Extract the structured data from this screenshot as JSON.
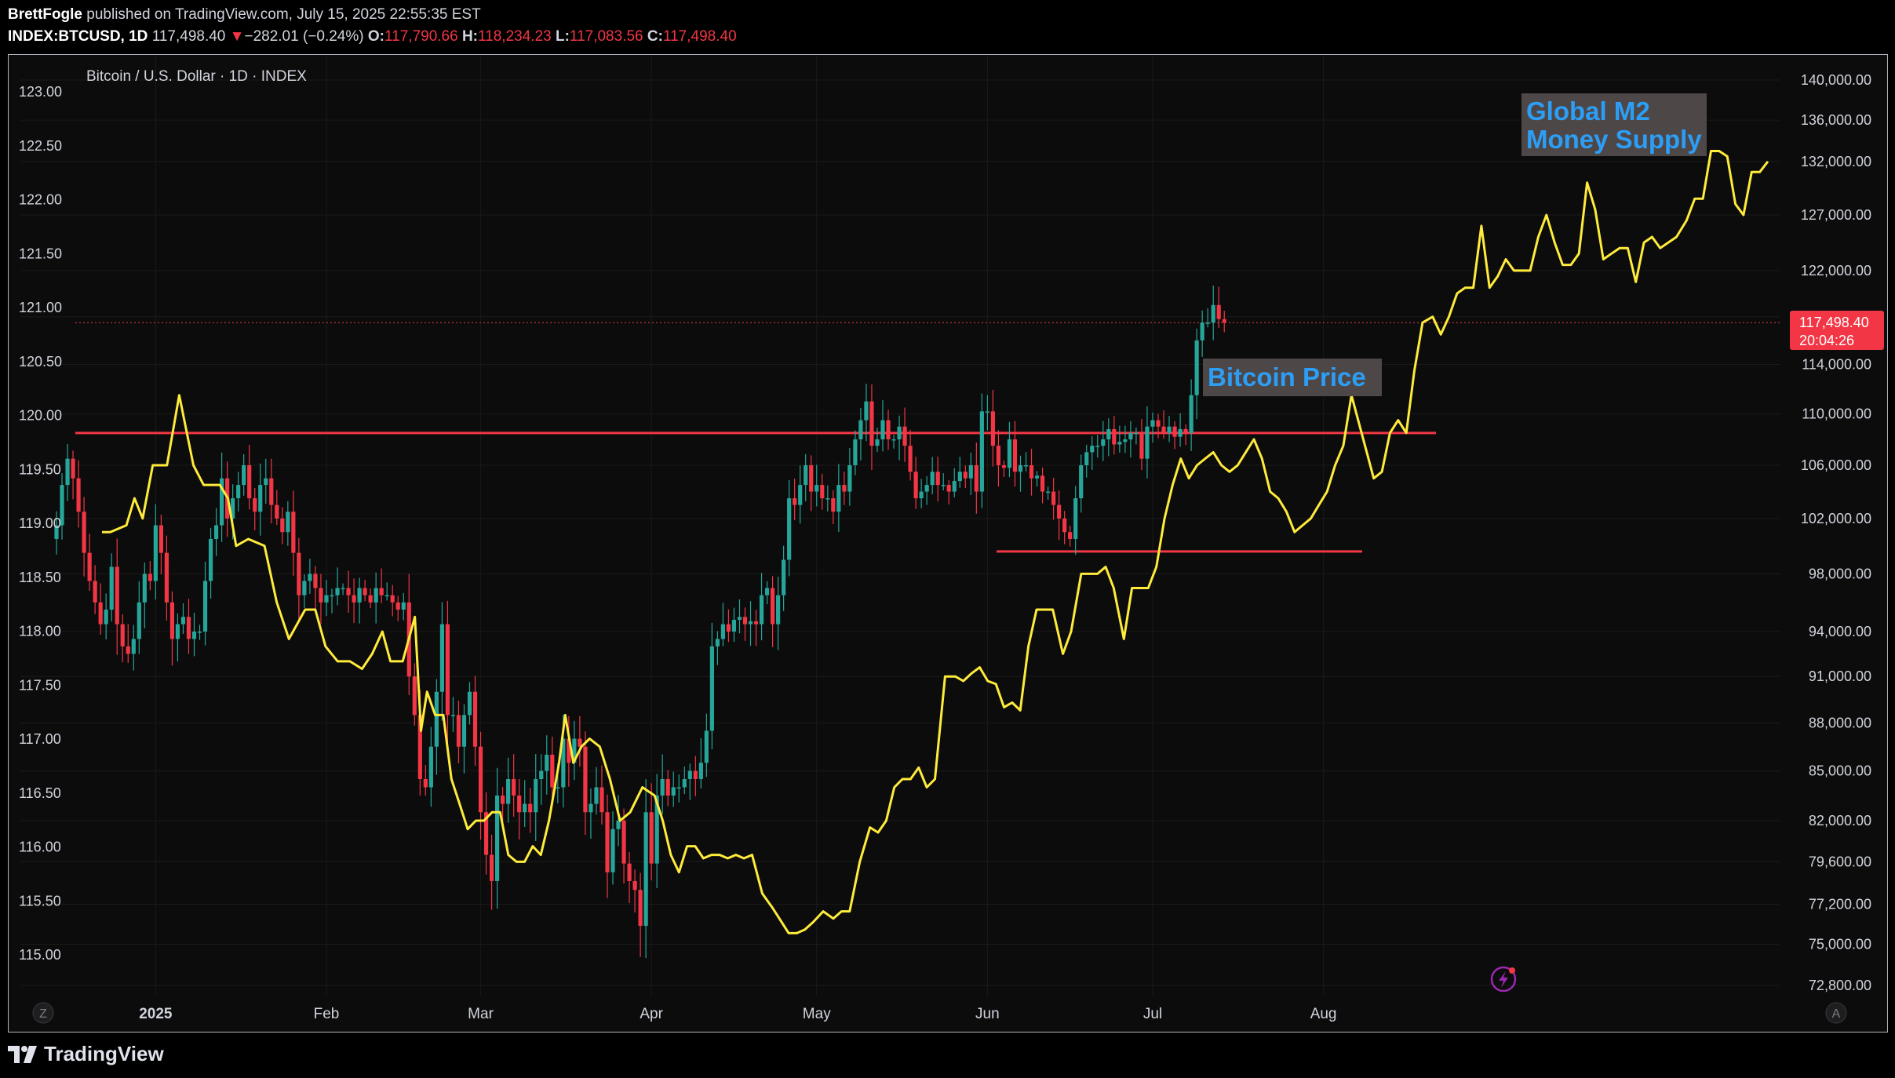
{
  "header": {
    "author": "BrettFogle",
    "published_text": "published on TradingView.com, July 15, 2025 22:55:35 EST",
    "symbol": "INDEX:BTCUSD, 1D",
    "last": "117,498.40",
    "arrow": "▼",
    "change": "−282.01 (−0.24%)",
    "o_label": "O:",
    "o": "117,790.66",
    "h_label": "H:",
    "h": "118,234.23",
    "l_label": "L:",
    "l": "117,083.56",
    "c_label": "C:",
    "c": "117,498.40"
  },
  "chart_title": "Bitcoin / U.S. Dollar · 1D · INDEX",
  "annotations": {
    "m2_line1": "Global M2",
    "m2_line2": "Money Supply",
    "btc": "Bitcoin Price"
  },
  "price_badge": {
    "price": "117,498.40",
    "countdown": "20:04:26"
  },
  "scale_buttons": {
    "left": "Z",
    "right": "A"
  },
  "footer": {
    "brand": "TradingView"
  },
  "colors": {
    "up": "#26a69a",
    "down": "#f23645",
    "m2": "#ffeb3b",
    "label_text": "#2c9ef6",
    "label_bg": "#4d4747",
    "background": "#0c0c0c"
  },
  "chart_data": {
    "type": "candlestick",
    "title": "Bitcoin / U.S. Dollar · 1D · INDEX",
    "x_ticks": [
      "2025",
      "Feb",
      "Mar",
      "Apr",
      "May",
      "Jun",
      "Jul",
      "Aug"
    ],
    "left_axis": {
      "ticks": [
        "123.00",
        "122.50",
        "122.00",
        "121.50",
        "121.00",
        "120.50",
        "120.00",
        "119.50",
        "119.00",
        "118.50",
        "118.00",
        "117.50",
        "117.00",
        "116.50",
        "116.00",
        "115.50",
        "115.00"
      ],
      "range": [
        115.0,
        123.0
      ]
    },
    "right_axis": {
      "scale": "log",
      "ticks": [
        "140,000.00",
        "136,000.00",
        "132,000.00",
        "127,000.00",
        "122,000.00",
        "118,000.00",
        "114,000.00",
        "110,000.00",
        "106,000.00",
        "102,000.00",
        "98,000.00",
        "94,000.00",
        "91,000.00",
        "88,000.00",
        "85,000.00",
        "82,000.00",
        "79,600.00",
        "77,200.00",
        "75,000.00",
        "72,800.00"
      ]
    },
    "resistance_level": 108500,
    "support_level": 99600,
    "series": [
      {
        "name": "Bitcoin Price",
        "kind": "candles",
        "date_range": [
          "2024-12-14",
          "2025-07-15"
        ],
        "closes": [
          101500,
          104500,
          106500,
          105000,
          102500,
          99500,
          97500,
          96000,
          94500,
          95500,
          98500,
          94500,
          93000,
          92500,
          93500,
          96000,
          98000,
          97500,
          101500,
          99500,
          96000,
          93500,
          94500,
          95000,
          93500,
          94000,
          94000,
          97500,
          100500,
          101500,
          105000,
          102000,
          103500,
          104500,
          106000,
          103500,
          102500,
          104500,
          105000,
          103000,
          102000,
          101000,
          102500,
          99500,
          96500,
          97500,
          98000,
          97000,
          96000,
          96500,
          96500,
          97000,
          97000,
          96500,
          96000,
          97000,
          96500,
          96000,
          97000,
          96500,
          96500,
          96000,
          95500,
          96000,
          91000,
          88500,
          84500,
          84000,
          86500,
          90000,
          94500,
          88500,
          88500,
          86500,
          88500,
          90000,
          86500,
          82500,
          80000,
          78500,
          83500,
          83000,
          84500,
          83500,
          82500,
          83000,
          82500,
          84500,
          85000,
          86000,
          84000,
          84000,
          87000,
          85500,
          87000,
          86500,
          82500,
          83000,
          84000,
          82500,
          79000,
          81500,
          82000,
          79500,
          78500,
          78000,
          76000,
          82500,
          79500,
          83500,
          84500,
          83500,
          84000,
          84000,
          84500,
          85000,
          84500,
          85500,
          87500,
          93000,
          93500,
          94500,
          94000,
          94800,
          95000,
          94500,
          94700,
          94500,
          96500,
          97000,
          94500,
          96500,
          99000,
          103500,
          103000,
          104500,
          106000,
          104000,
          104500,
          103500,
          103500,
          102500,
          104500,
          104000,
          106000,
          108000,
          109500,
          111000,
          107500,
          108000,
          109500,
          108000,
          108000,
          109000,
          107500,
          105500,
          103500,
          104000,
          104500,
          105500,
          104500,
          104500,
          104000,
          104800,
          105500,
          105000,
          106000,
          104000,
          110200,
          110200,
          107500,
          106000,
          105800,
          108000,
          105500,
          106000,
          106000,
          105000,
          105200,
          104000,
          104000,
          103000,
          102000,
          101000,
          100500,
          103500,
          106000,
          107000,
          107500,
          107500,
          108000,
          108800,
          107600,
          107800,
          108000,
          108500,
          108500,
          106500,
          109000,
          109500,
          109000,
          108500,
          109000,
          108200,
          108800,
          108500,
          111500,
          116000,
          117500,
          117500,
          119000,
          117800,
          117498
        ]
      },
      {
        "name": "Global M2 Money Supply",
        "kind": "line",
        "points": [
          [
            0,
            101000
          ],
          [
            0.4,
            101000
          ],
          [
            1.2,
            101500
          ],
          [
            1.6,
            103500
          ],
          [
            2.0,
            102000
          ],
          [
            2.5,
            106000
          ],
          [
            3.2,
            106000
          ],
          [
            3.8,
            111500
          ],
          [
            4.5,
            106000
          ],
          [
            5.0,
            104500
          ],
          [
            5.8,
            104500
          ],
          [
            6.2,
            103500
          ],
          [
            6.6,
            100000
          ],
          [
            7.2,
            100500
          ],
          [
            8.0,
            100000
          ],
          [
            8.6,
            96000
          ],
          [
            9.2,
            93500
          ],
          [
            10.0,
            95500
          ],
          [
            10.5,
            95500
          ],
          [
            11.0,
            93000
          ],
          [
            11.6,
            92000
          ],
          [
            12.2,
            92000
          ],
          [
            12.8,
            91500
          ],
          [
            13.3,
            92500
          ],
          [
            13.8,
            94000
          ],
          [
            14.2,
            92000
          ],
          [
            14.8,
            92000
          ],
          [
            15.4,
            95000
          ],
          [
            15.7,
            87500
          ],
          [
            16.0,
            90000
          ],
          [
            16.4,
            88500
          ],
          [
            16.8,
            88500
          ],
          [
            17.2,
            84500
          ],
          [
            17.6,
            83000
          ],
          [
            18.0,
            81500
          ],
          [
            18.4,
            82000
          ],
          [
            18.8,
            82000
          ],
          [
            19.2,
            82500
          ],
          [
            19.6,
            82500
          ],
          [
            20.0,
            80000
          ],
          [
            20.4,
            79600
          ],
          [
            20.8,
            79600
          ],
          [
            21.2,
            80500
          ],
          [
            21.6,
            80000
          ],
          [
            22.0,
            82000
          ],
          [
            22.5,
            85500
          ],
          [
            22.8,
            88500
          ],
          [
            23.2,
            85500
          ],
          [
            23.6,
            86500
          ],
          [
            24.0,
            87000
          ],
          [
            24.5,
            86500
          ],
          [
            25.0,
            84500
          ],
          [
            25.5,
            82000
          ],
          [
            26.0,
            82500
          ],
          [
            26.6,
            84000
          ],
          [
            27.2,
            83500
          ],
          [
            27.6,
            82000
          ],
          [
            28.0,
            80000
          ],
          [
            28.4,
            79000
          ],
          [
            28.8,
            80500
          ],
          [
            29.2,
            80500
          ],
          [
            29.6,
            79800
          ],
          [
            30.0,
            80000
          ],
          [
            30.4,
            80000
          ],
          [
            30.8,
            79800
          ],
          [
            31.2,
            80000
          ],
          [
            31.6,
            79800
          ],
          [
            32.0,
            80000
          ],
          [
            32.5,
            77800
          ],
          [
            33.0,
            77000
          ],
          [
            33.4,
            76300
          ],
          [
            33.8,
            75600
          ],
          [
            34.2,
            75600
          ],
          [
            34.6,
            75800
          ],
          [
            35.0,
            76200
          ],
          [
            35.5,
            76800
          ],
          [
            36.0,
            76400
          ],
          [
            36.4,
            76800
          ],
          [
            36.8,
            76800
          ],
          [
            37.3,
            79600
          ],
          [
            37.8,
            81600
          ],
          [
            38.2,
            81300
          ],
          [
            38.6,
            82000
          ],
          [
            39.0,
            84000
          ],
          [
            39.4,
            84500
          ],
          [
            39.8,
            84500
          ],
          [
            40.2,
            85200
          ],
          [
            40.6,
            84000
          ],
          [
            41.0,
            84500
          ],
          [
            41.5,
            91000
          ],
          [
            42.0,
            91000
          ],
          [
            42.4,
            90700
          ],
          [
            42.8,
            91200
          ],
          [
            43.2,
            91600
          ],
          [
            43.6,
            90700
          ],
          [
            44.0,
            90500
          ],
          [
            44.4,
            89000
          ],
          [
            44.8,
            89300
          ],
          [
            45.2,
            88800
          ],
          [
            45.6,
            93000
          ],
          [
            46.0,
            95500
          ],
          [
            46.4,
            95500
          ],
          [
            46.8,
            95500
          ],
          [
            47.3,
            92500
          ],
          [
            47.7,
            94000
          ],
          [
            48.2,
            98000
          ],
          [
            48.6,
            98000
          ],
          [
            49.0,
            98000
          ],
          [
            49.4,
            98500
          ],
          [
            49.8,
            97000
          ],
          [
            50.3,
            93500
          ],
          [
            50.7,
            97000
          ],
          [
            51.1,
            97000
          ],
          [
            51.5,
            97000
          ],
          [
            51.9,
            98500
          ],
          [
            52.3,
            102000
          ],
          [
            52.7,
            104500
          ],
          [
            53.1,
            106500
          ],
          [
            53.5,
            105000
          ],
          [
            53.9,
            106000
          ],
          [
            54.3,
            106500
          ],
          [
            54.7,
            107000
          ],
          [
            55.1,
            106000
          ],
          [
            55.5,
            105500
          ],
          [
            55.9,
            106000
          ],
          [
            56.3,
            107000
          ],
          [
            56.7,
            108000
          ],
          [
            57.1,
            106500
          ],
          [
            57.5,
            104000
          ],
          [
            57.9,
            103500
          ],
          [
            58.3,
            102500
          ],
          [
            58.7,
            101000
          ],
          [
            59.1,
            101500
          ],
          [
            59.5,
            102000
          ],
          [
            59.9,
            103000
          ],
          [
            60.3,
            104000
          ],
          [
            60.7,
            106000
          ],
          [
            61.1,
            107500
          ],
          [
            61.5,
            111500
          ],
          [
            62.0,
            108500
          ],
          [
            62.6,
            105000
          ],
          [
            63.0,
            105500
          ],
          [
            63.4,
            108500
          ],
          [
            63.8,
            109500
          ],
          [
            64.2,
            108500
          ],
          [
            64.6,
            113500
          ],
          [
            65.0,
            117500
          ],
          [
            65.5,
            118000
          ],
          [
            65.9,
            116500
          ],
          [
            66.3,
            118000
          ],
          [
            66.7,
            120000
          ],
          [
            67.1,
            120500
          ],
          [
            67.5,
            120500
          ],
          [
            67.9,
            126000
          ],
          [
            68.3,
            120500
          ],
          [
            68.7,
            121500
          ],
          [
            69.1,
            123000
          ],
          [
            69.5,
            122000
          ],
          [
            69.9,
            122000
          ],
          [
            70.3,
            122000
          ],
          [
            70.7,
            125000
          ],
          [
            71.1,
            127000
          ],
          [
            71.5,
            124500
          ],
          [
            71.9,
            122500
          ],
          [
            72.3,
            122500
          ],
          [
            72.7,
            123500
          ],
          [
            73.1,
            130000
          ],
          [
            73.5,
            127500
          ],
          [
            73.9,
            123000
          ],
          [
            74.3,
            123500
          ],
          [
            74.7,
            124000
          ],
          [
            75.1,
            124000
          ],
          [
            75.5,
            121000
          ],
          [
            75.9,
            124500
          ],
          [
            76.3,
            125000
          ],
          [
            76.7,
            124000
          ],
          [
            77.1,
            124500
          ],
          [
            77.5,
            125000
          ],
          [
            78.0,
            126500
          ],
          [
            78.4,
            128500
          ],
          [
            78.8,
            128500
          ],
          [
            79.2,
            133000
          ],
          [
            79.6,
            133000
          ],
          [
            80.0,
            132500
          ],
          [
            80.4,
            128000
          ],
          [
            80.8,
            127000
          ],
          [
            81.2,
            131000
          ],
          [
            81.6,
            131000
          ],
          [
            82.0,
            132000
          ]
        ]
      }
    ]
  }
}
